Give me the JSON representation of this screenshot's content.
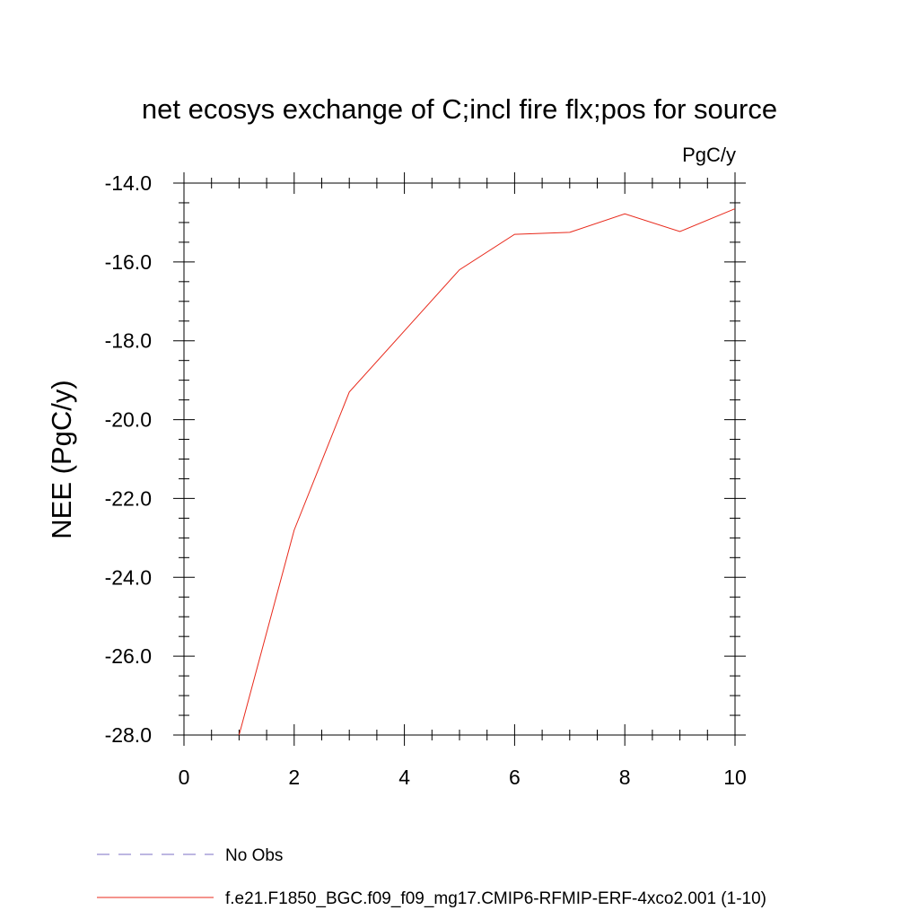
{
  "chart_data": {
    "type": "line",
    "title": "net ecosys exchange of C;incl fire flx;pos for source",
    "units": "PgC/y",
    "xlabel": "",
    "ylabel": "NEE  (PgC/y)",
    "xlim": [
      0,
      10
    ],
    "ylim": [
      -28.0,
      -14.0
    ],
    "x_ticks": [
      "0",
      "2",
      "4",
      "6",
      "8",
      "10"
    ],
    "y_ticks": [
      "-14.0",
      "-16.0",
      "-18.0",
      "-20.0",
      "-22.0",
      "-24.0",
      "-26.0",
      "-28.0"
    ],
    "grid": false,
    "legend_position": "bottom",
    "series": [
      {
        "name": "No Obs",
        "color": "#7b6fc4",
        "style": "dashed",
        "x": [],
        "y": []
      },
      {
        "name": "f.e21.F1850_BGC.f09_f09_mg17.CMIP6-RFMIP-ERF-4xco2.001 (1-10)",
        "color": "#e8291b",
        "style": "solid",
        "x": [
          1,
          2,
          3,
          4,
          5,
          6,
          7,
          8,
          9,
          10
        ],
        "y": [
          -28.0,
          -22.8,
          -19.3,
          -17.75,
          -16.2,
          -15.3,
          -15.25,
          -14.78,
          -15.23,
          -14.65
        ]
      }
    ]
  }
}
